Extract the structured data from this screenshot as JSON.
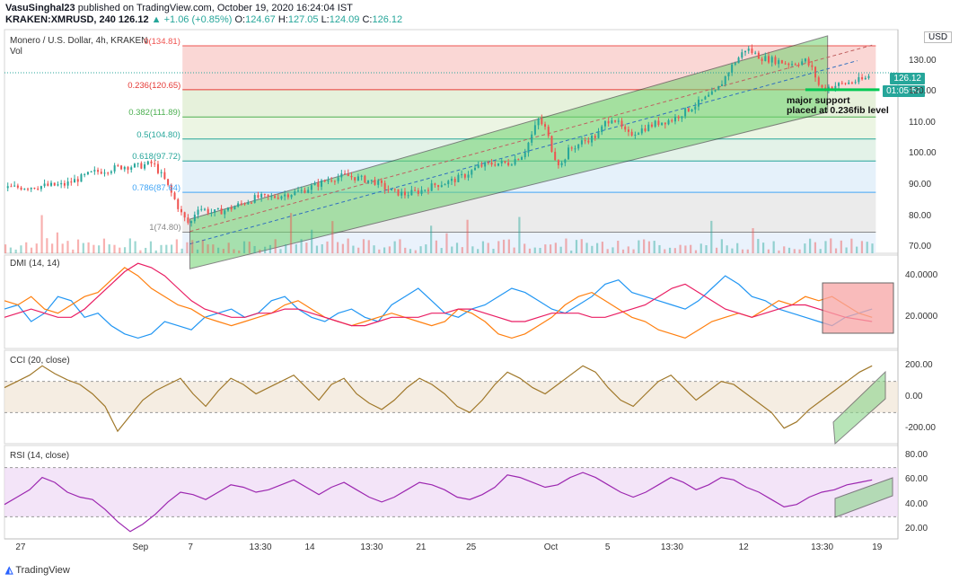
{
  "header": {
    "publisher": "VasuSinghal23",
    "published_text": "published on TradingView.com, October 19, 2020 16:24:04 IST",
    "symbol": "KRAKEN:XMRUSD, 240",
    "last": "126.12",
    "change": "+1.06 (+0.85%)",
    "open_label": "O:",
    "open": "124.67",
    "high_label": "H:",
    "high": "127.05",
    "low_label": "L:",
    "low": "124.09",
    "close_label": "C:",
    "close": "126.12"
  },
  "main_pane": {
    "title": "Monero / U.S. Dollar, 4h, KRAKEN",
    "vol_label": "Vol",
    "currency_button": "USD",
    "price_badge": "126.12",
    "countdown_badge": "01:05:57",
    "annotation_line1": "major support",
    "annotation_line2": "placed at 0.236fib level"
  },
  "dmi_pane": {
    "title": "DMI (14, 14)"
  },
  "cci_pane": {
    "title": "CCI (20, close)"
  },
  "rsi_pane": {
    "title": "RSI (14, close)"
  },
  "footer": {
    "brand": "TradingView"
  },
  "colors": {
    "up": "#26a69a",
    "down": "#ef5350",
    "plus_di": "#2196f3",
    "minus_di": "#ff7f0e",
    "adx": "#e91e63",
    "cci": "#a0782a",
    "rsi": "#9c27b0",
    "channel_fill": "#6fd36f",
    "highlight_box": "#f8a5a5"
  },
  "chart_data": [
    {
      "type": "candlestick",
      "title": "Monero / U.S. Dollar, 4h, KRAKEN",
      "x_tick_labels": [
        "27",
        "Sep",
        "7",
        "13:30",
        "14",
        "13:30",
        "21",
        "25",
        "Oct",
        "5",
        "13:30",
        "12",
        "13:30",
        "19"
      ],
      "y_ticks": [
        70,
        80,
        90,
        100,
        110,
        120,
        130
      ],
      "ylim": [
        68,
        140
      ],
      "fib_levels": [
        {
          "label": "0(134.81)",
          "ratio": 0,
          "value": 134.81,
          "color": "#ef5350"
        },
        {
          "label": "0.236(120.65)",
          "ratio": 0.236,
          "value": 120.65,
          "color": "#e53935"
        },
        {
          "label": "0.382(111.89)",
          "ratio": 0.382,
          "value": 111.89,
          "color": "#4caf50"
        },
        {
          "label": "0.5(104.80)",
          "ratio": 0.5,
          "value": 104.8,
          "color": "#26a69a"
        },
        {
          "label": "0.618(97.72)",
          "ratio": 0.618,
          "value": 97.72,
          "color": "#26a69a"
        },
        {
          "label": "0.786(87.64)",
          "ratio": 0.786,
          "value": 87.64,
          "color": "#42a5f5"
        },
        {
          "label": "1(74.80)",
          "ratio": 1,
          "value": 74.8,
          "color": "#888888"
        }
      ],
      "price_path": [
        [
          0,
          89
        ],
        [
          4,
          89.5
        ],
        [
          8,
          90
        ],
        [
          12,
          94
        ],
        [
          16,
          96
        ],
        [
          18,
          96
        ],
        [
          20,
          97
        ],
        [
          21.5,
          92
        ],
        [
          23,
          85
        ],
        [
          24,
          80
        ],
        [
          25,
          77
        ],
        [
          26,
          83
        ],
        [
          27,
          82
        ],
        [
          28,
          81
        ],
        [
          30,
          82
        ],
        [
          32,
          84
        ],
        [
          34,
          86
        ],
        [
          36,
          86
        ],
        [
          38,
          87
        ],
        [
          40,
          88
        ],
        [
          42,
          90
        ],
        [
          44,
          92
        ],
        [
          46,
          93
        ],
        [
          48,
          92
        ],
        [
          50,
          91
        ],
        [
          52,
          88
        ],
        [
          54,
          87
        ],
        [
          56,
          88
        ],
        [
          58,
          90
        ],
        [
          60,
          91
        ],
        [
          62,
          93
        ],
        [
          64,
          96
        ],
        [
          66,
          97
        ],
        [
          68,
          97
        ],
        [
          70,
          100
        ],
        [
          72,
          111
        ],
        [
          73,
          108
        ],
        [
          74,
          100
        ],
        [
          75,
          96
        ],
        [
          76,
          101
        ],
        [
          78,
          104
        ],
        [
          80,
          106
        ],
        [
          81,
          110
        ],
        [
          82,
          112
        ],
        [
          84,
          106
        ],
        [
          86,
          108
        ],
        [
          88,
          110
        ],
        [
          90,
          111
        ],
        [
          92,
          114
        ],
        [
          94,
          117
        ],
        [
          96,
          120
        ],
        [
          98,
          128
        ],
        [
          100,
          134
        ],
        [
          102,
          131
        ],
        [
          104,
          130
        ],
        [
          106,
          129
        ],
        [
          108,
          130
        ],
        [
          109,
          127
        ],
        [
          110,
          121
        ],
        [
          112,
          122
        ],
        [
          114,
          123
        ],
        [
          116,
          124
        ],
        [
          117,
          126.12
        ]
      ],
      "channel": {
        "lower": [
          [
            25,
            63
          ],
          [
            111,
            113.5
          ]
        ],
        "upper": [
          [
            25,
            79
          ],
          [
            111,
            138
          ]
        ],
        "mid": [
          [
            25,
            71
          ],
          [
            115,
            130
          ]
        ]
      },
      "support_level": 120.65
    },
    {
      "type": "line",
      "title": "DMI (14, 14)",
      "y_ticks": [
        20,
        40
      ],
      "ylim": [
        5,
        50
      ],
      "series": [
        {
          "name": "+DI",
          "color": "#2196f3",
          "values": [
            24,
            26,
            18,
            22,
            30,
            28,
            20,
            22,
            16,
            12,
            10,
            12,
            18,
            16,
            14,
            20,
            22,
            24,
            20,
            22,
            28,
            30,
            24,
            20,
            18,
            22,
            24,
            20,
            18,
            26,
            30,
            34,
            28,
            22,
            20,
            24,
            26,
            30,
            34,
            32,
            28,
            24,
            22,
            26,
            30,
            36,
            38,
            32,
            30,
            28,
            26,
            24,
            28,
            34,
            40,
            36,
            30,
            28,
            24,
            22,
            20,
            18,
            16,
            20,
            22,
            24
          ]
        },
        {
          "name": "-DI",
          "color": "#ff7f0e",
          "values": [
            28,
            26,
            30,
            24,
            22,
            26,
            30,
            32,
            38,
            44,
            40,
            34,
            30,
            26,
            24,
            20,
            18,
            16,
            18,
            20,
            22,
            26,
            28,
            24,
            20,
            18,
            16,
            18,
            20,
            22,
            20,
            18,
            16,
            18,
            24,
            22,
            18,
            12,
            10,
            12,
            16,
            20,
            26,
            30,
            32,
            28,
            24,
            20,
            18,
            14,
            12,
            10,
            14,
            18,
            20,
            22,
            20,
            24,
            28,
            26,
            30,
            28,
            30,
            26,
            22,
            20
          ]
        },
        {
          "name": "ADX",
          "color": "#e91e63",
          "values": [
            20,
            22,
            24,
            22,
            20,
            20,
            24,
            30,
            36,
            42,
            46,
            44,
            40,
            34,
            28,
            24,
            22,
            20,
            20,
            22,
            22,
            24,
            24,
            22,
            20,
            18,
            16,
            16,
            18,
            20,
            20,
            20,
            22,
            22,
            24,
            24,
            22,
            20,
            18,
            18,
            20,
            22,
            22,
            22,
            20,
            20,
            22,
            24,
            26,
            30,
            34,
            36,
            32,
            28,
            24,
            22,
            20,
            22,
            24,
            26,
            26,
            24,
            22,
            20,
            19,
            18
          ]
        }
      ]
    },
    {
      "type": "line",
      "title": "CCI (20, close)",
      "y_ticks": [
        -200,
        0,
        200
      ],
      "ylim": [
        -300,
        300
      ],
      "bands": [
        -100,
        100
      ],
      "series": [
        {
          "name": "CCI",
          "color": "#a0782a",
          "values": [
            60,
            100,
            140,
            200,
            150,
            110,
            80,
            20,
            -60,
            -220,
            -120,
            -20,
            40,
            80,
            120,
            20,
            -60,
            40,
            120,
            80,
            20,
            60,
            100,
            140,
            60,
            -20,
            80,
            120,
            20,
            -40,
            -80,
            -20,
            60,
            120,
            80,
            20,
            -60,
            -100,
            -20,
            80,
            160,
            120,
            60,
            20,
            80,
            140,
            200,
            160,
            60,
            -20,
            -60,
            20,
            100,
            140,
            60,
            -20,
            40,
            100,
            80,
            20,
            -40,
            -100,
            -200,
            -160,
            -80,
            -20,
            40,
            100,
            160,
            200
          ]
        }
      ]
    },
    {
      "type": "line",
      "title": "RSI (14, close)",
      "y_ticks": [
        20,
        40,
        60,
        80
      ],
      "ylim": [
        12,
        88
      ],
      "bands": [
        30,
        70
      ],
      "series": [
        {
          "name": "RSI",
          "color": "#9c27b0",
          "values": [
            40,
            46,
            52,
            62,
            58,
            50,
            46,
            44,
            36,
            26,
            18,
            24,
            32,
            42,
            50,
            48,
            44,
            50,
            56,
            54,
            50,
            52,
            56,
            60,
            54,
            48,
            54,
            58,
            52,
            46,
            42,
            46,
            52,
            58,
            56,
            52,
            46,
            44,
            48,
            54,
            64,
            62,
            58,
            54,
            56,
            62,
            66,
            62,
            56,
            50,
            46,
            50,
            56,
            62,
            58,
            52,
            56,
            62,
            60,
            54,
            50,
            44,
            38,
            40,
            46,
            50,
            52,
            56,
            58,
            60
          ]
        }
      ]
    }
  ]
}
